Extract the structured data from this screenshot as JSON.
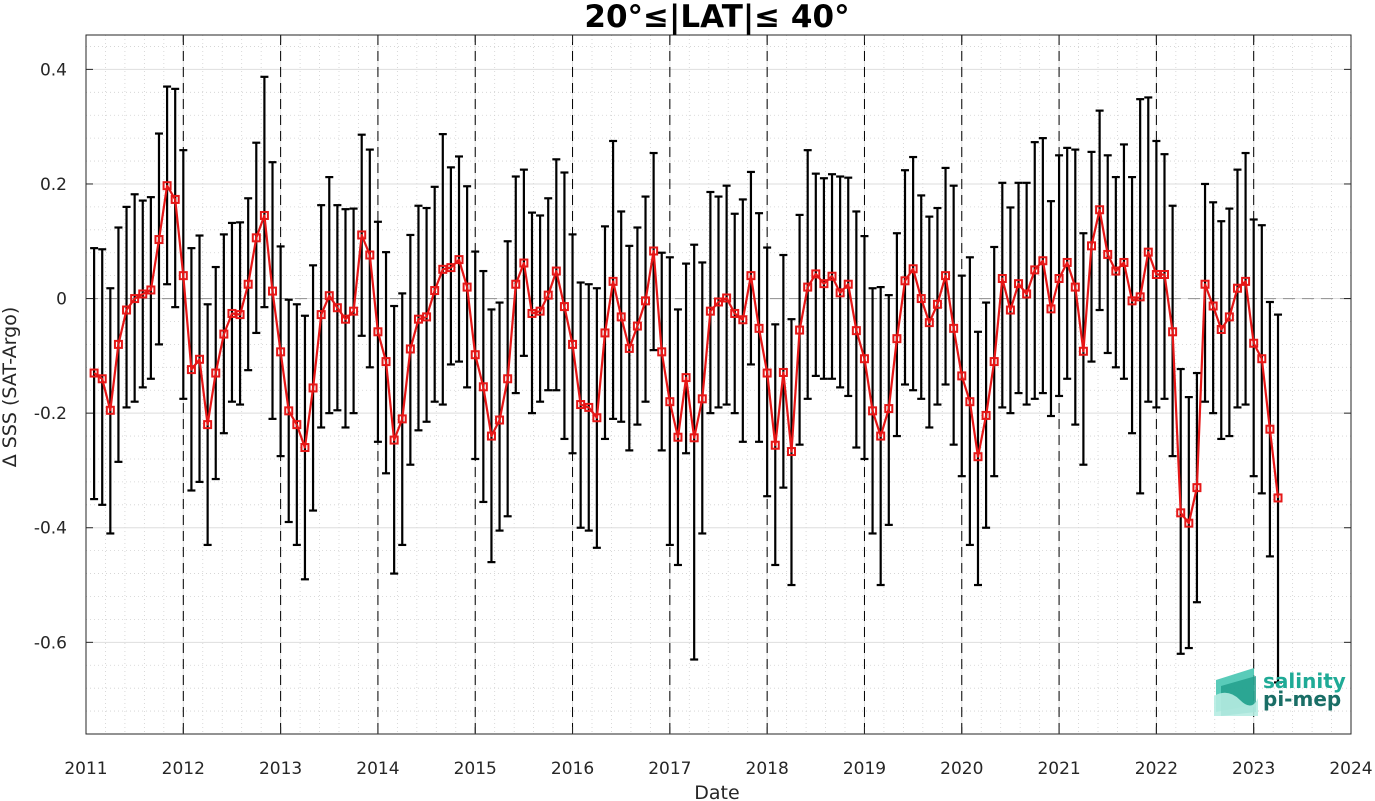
{
  "chart_data": {
    "type": "line",
    "title": "20°≤|LAT|≤ 40°",
    "xlabel": "Date",
    "ylabel": "Δ SSS (SAT-Argo)",
    "xlim": [
      2011,
      2024
    ],
    "ylim": [
      -0.76,
      0.46
    ],
    "x_ticks": [
      2011,
      2012,
      2013,
      2014,
      2015,
      2016,
      2017,
      2018,
      2019,
      2020,
      2021,
      2022,
      2023,
      2024
    ],
    "x_tick_labels": [
      "2011",
      "2012",
      "2013",
      "2014",
      "2015",
      "2016",
      "2017",
      "2018",
      "2019",
      "2020",
      "2021",
      "2022",
      "2023",
      "2024"
    ],
    "y_ticks": [
      0.4,
      0.2,
      0,
      -0.2,
      -0.4,
      -0.6
    ],
    "y_tick_labels": [
      "0.4",
      "0.2",
      "0",
      "-0.2",
      "-0.4",
      "-0.6"
    ],
    "grid": true,
    "minor_grid": true,
    "year_separators": [
      2012,
      2013,
      2014,
      2015,
      2016,
      2017,
      2018,
      2019,
      2020,
      2021,
      2022,
      2023
    ],
    "zero_line": true,
    "series": [
      {
        "color": "#e61717",
        "errorbar_color": "#000000",
        "marker": "square",
        "start_year": 2011,
        "start_month": 2,
        "values": [
          -0.13,
          -0.14,
          -0.195,
          -0.08,
          -0.02,
          0.0,
          0.008,
          0.015,
          0.103,
          0.197,
          0.173,
          0.04,
          -0.124,
          -0.106,
          -0.22,
          -0.13,
          -0.062,
          -0.026,
          -0.028,
          0.025,
          0.106,
          0.145,
          0.013,
          -0.093,
          -0.196,
          -0.22,
          -0.26,
          -0.156,
          -0.028,
          0.005,
          -0.016,
          -0.036,
          -0.022,
          0.111,
          0.076,
          -0.058,
          -0.11,
          -0.247,
          -0.21,
          -0.088,
          -0.036,
          -0.032,
          0.014,
          0.051,
          0.054,
          0.068,
          0.02,
          -0.098,
          -0.154,
          -0.24,
          -0.212,
          -0.14,
          0.025,
          0.062,
          -0.026,
          -0.022,
          0.006,
          0.048,
          -0.014,
          -0.08,
          -0.185,
          -0.19,
          -0.208,
          -0.06,
          0.03,
          -0.032,
          -0.087,
          -0.048,
          -0.004,
          0.083,
          -0.093,
          -0.18,
          -0.242,
          -0.138,
          -0.243,
          -0.175,
          -0.022,
          -0.006,
          0.001,
          -0.026,
          -0.037,
          0.04,
          -0.052,
          -0.13,
          -0.256,
          -0.129,
          -0.267,
          -0.055,
          0.02,
          0.043,
          0.026,
          0.039,
          0.01,
          0.025,
          -0.056,
          -0.105,
          -0.196,
          -0.24,
          -0.192,
          -0.07,
          0.031,
          0.052,
          0.0,
          -0.042,
          -0.01,
          0.04,
          -0.052,
          -0.135,
          -0.18,
          -0.276,
          -0.204,
          -0.11,
          0.035,
          -0.02,
          0.026,
          0.008,
          0.05,
          0.066,
          -0.018,
          0.035,
          0.063,
          0.02,
          -0.092,
          0.092,
          0.155,
          0.077,
          0.048,
          0.063,
          -0.004,
          0.003,
          0.081,
          0.042,
          0.042,
          -0.058,
          -0.374,
          -0.392,
          -0.33,
          0.025,
          -0.013,
          -0.054,
          -0.032,
          0.018,
          0.03,
          -0.078,
          -0.105,
          -0.228,
          -0.348
        ],
        "lower": [
          -0.35,
          -0.36,
          -0.41,
          -0.285,
          -0.19,
          -0.18,
          -0.155,
          -0.14,
          -0.08,
          0.025,
          -0.015,
          -0.175,
          -0.335,
          -0.32,
          -0.43,
          -0.315,
          -0.235,
          -0.18,
          -0.185,
          -0.125,
          -0.06,
          -0.015,
          -0.21,
          -0.275,
          -0.39,
          -0.43,
          -0.49,
          -0.37,
          -0.225,
          -0.2,
          -0.195,
          -0.225,
          -0.2,
          -0.065,
          -0.12,
          -0.25,
          -0.305,
          -0.48,
          -0.43,
          -0.29,
          -0.23,
          -0.215,
          -0.18,
          -0.185,
          -0.115,
          -0.11,
          -0.155,
          -0.28,
          -0.355,
          -0.46,
          -0.405,
          -0.38,
          -0.165,
          -0.1,
          -0.2,
          -0.18,
          -0.16,
          -0.16,
          -0.245,
          -0.27,
          -0.4,
          -0.405,
          -0.435,
          -0.245,
          -0.21,
          -0.215,
          -0.265,
          -0.22,
          -0.18,
          -0.09,
          -0.265,
          -0.43,
          -0.465,
          -0.27,
          -0.63,
          -0.41,
          -0.2,
          -0.19,
          -0.185,
          -0.2,
          -0.25,
          -0.115,
          -0.25,
          -0.345,
          -0.465,
          -0.33,
          -0.5,
          -0.255,
          -0.175,
          -0.135,
          -0.14,
          -0.14,
          -0.155,
          -0.17,
          -0.26,
          -0.28,
          -0.41,
          -0.5,
          -0.395,
          -0.24,
          -0.15,
          -0.16,
          -0.175,
          -0.225,
          -0.185,
          -0.15,
          -0.255,
          -0.31,
          -0.43,
          -0.5,
          -0.4,
          -0.31,
          -0.19,
          -0.2,
          -0.165,
          -0.185,
          -0.175,
          -0.165,
          -0.205,
          -0.17,
          -0.14,
          -0.22,
          -0.29,
          -0.11,
          -0.02,
          -0.095,
          -0.12,
          -0.14,
          -0.235,
          -0.34,
          -0.18,
          -0.19,
          -0.175,
          -0.275,
          -0.62,
          -0.61,
          -0.53,
          -0.18,
          -0.2,
          -0.245,
          -0.24,
          -0.19,
          -0.185,
          -0.31,
          -0.34,
          -0.45,
          -0.67
        ],
        "upper": [
          0.088,
          0.086,
          0.018,
          0.124,
          0.16,
          0.182,
          0.171,
          0.177,
          0.288,
          0.37,
          0.366,
          0.259,
          0.088,
          0.11,
          -0.01,
          0.055,
          0.112,
          0.132,
          0.133,
          0.175,
          0.272,
          0.387,
          0.238,
          0.091,
          -0.002,
          -0.01,
          -0.03,
          0.058,
          0.163,
          0.212,
          0.163,
          0.156,
          0.157,
          0.286,
          0.26,
          0.134,
          0.081,
          -0.013,
          0.009,
          0.111,
          0.162,
          0.158,
          0.195,
          0.287,
          0.229,
          0.248,
          0.196,
          0.082,
          0.048,
          -0.019,
          -0.007,
          0.1,
          0.213,
          0.225,
          0.15,
          0.145,
          0.175,
          0.243,
          0.22,
          0.112,
          0.028,
          0.025,
          0.018,
          0.126,
          0.275,
          0.152,
          0.092,
          0.124,
          0.178,
          0.254,
          0.08,
          0.072,
          -0.019,
          0.061,
          0.094,
          0.063,
          0.186,
          0.178,
          0.197,
          0.148,
          0.173,
          0.221,
          0.149,
          0.089,
          -0.045,
          0.076,
          -0.036,
          0.146,
          0.259,
          0.218,
          0.21,
          0.217,
          0.213,
          0.211,
          0.152,
          0.109,
          0.018,
          0.02,
          0.006,
          0.114,
          0.224,
          0.247,
          0.18,
          0.143,
          0.158,
          0.228,
          0.197,
          0.04,
          0.072,
          -0.058,
          -0.007,
          0.09,
          0.202,
          0.159,
          0.202,
          0.202,
          0.273,
          0.28,
          0.17,
          0.25,
          0.263,
          0.26,
          0.114,
          0.256,
          0.328,
          0.25,
          0.212,
          0.269,
          0.212,
          0.348,
          0.351,
          0.275,
          0.252,
          0.162,
          -0.123,
          -0.172,
          -0.13,
          0.2,
          0.168,
          0.135,
          0.157,
          0.225,
          0.254,
          0.138,
          0.128,
          -0.006,
          -0.028
        ]
      }
    ]
  },
  "logo": {
    "line1": "salinity",
    "line2": "pi-mep",
    "color1": "#1faa96",
    "color2": "#1a6e66"
  }
}
